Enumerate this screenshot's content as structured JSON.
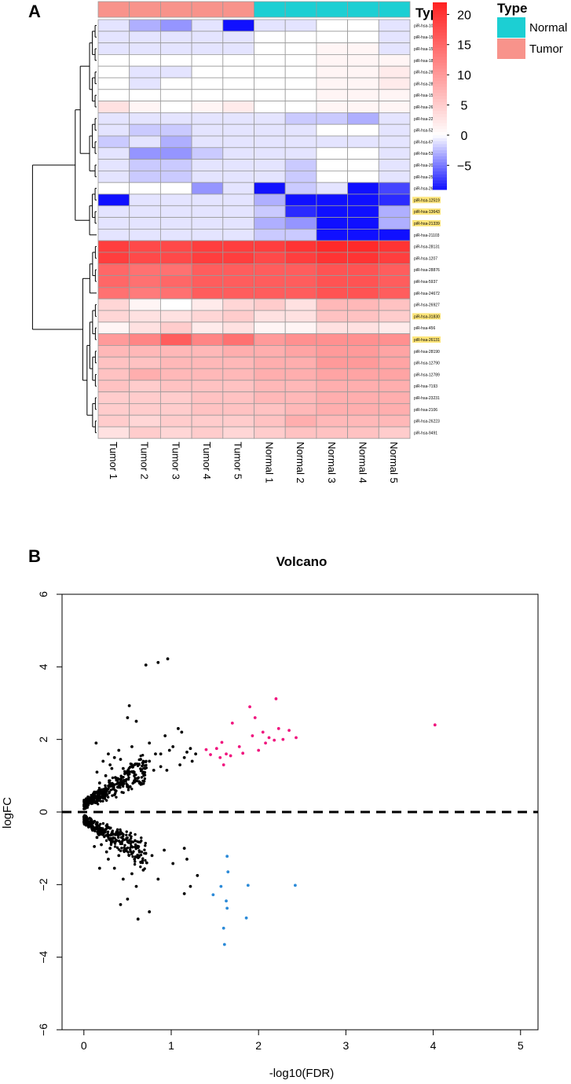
{
  "panel_labels": [
    "A",
    "B"
  ],
  "chart_data": [
    {
      "type": "heatmap",
      "panel": "A",
      "columns": [
        "Tumor 1",
        "Tumor 2",
        "Tumor 3",
        "Tumor 4",
        "Tumor 5",
        "Normal 1",
        "Normal 2",
        "Normal 3",
        "Normal 4",
        "Normal 5"
      ],
      "column_type": [
        "Tumor",
        "Tumor",
        "Tumor",
        "Tumor",
        "Tumor",
        "Normal",
        "Normal",
        "Normal",
        "Normal",
        "Normal"
      ],
      "rows": [
        "piR-hsa-10327",
        "piR-hsa-15404",
        "piR-hsa-15405",
        "piR-hsa-18657",
        "piR-hsa-28183",
        "piR-hsa-28185",
        "piR-hsa-1583",
        "piR-hsa-26395",
        "piR-hsa-22842",
        "piR-hsa-5287",
        "piR-hsa-6746",
        "piR-hsa-5302",
        "piR-hsa-20313",
        "piR-hsa-25861",
        "piR-hsa-26427",
        "piR-hsa-12519",
        "piR-hsa-13643",
        "piR-hsa-21339",
        "piR-hsa-21103",
        "piR-hsa-28131",
        "piR-hsa-1207",
        "piR-hsa-28876",
        "piR-hsa-5937",
        "piR-hsa-24672",
        "piR-hsa-26927",
        "piR-hsa-31830",
        "piR-hsa-456",
        "piR-hsa-26131",
        "piR-hsa-28190",
        "piR-hsa-12790",
        "piR-hsa-12789",
        "piR-hsa-7193",
        "piR-hsa-23231",
        "piR-hsa-2106",
        "piR-hsa-26223",
        "piR-hsa-9491"
      ],
      "highlighted_rows": [
        "piR-hsa-12519",
        "piR-hsa-13643",
        "piR-hsa-21339",
        "piR-hsa-31830",
        "piR-hsa-26131"
      ],
      "values": [
        [
          -1,
          -3,
          -4,
          -1,
          -9,
          -1,
          -1,
          0,
          0,
          -1
        ],
        [
          -1,
          -1,
          -1,
          -1,
          -1,
          0,
          0,
          0,
          0,
          -1
        ],
        [
          -1,
          -1,
          -1,
          -1,
          -1,
          0,
          0,
          1,
          1,
          -1
        ],
        [
          0,
          0,
          0,
          0,
          0,
          0,
          0,
          1,
          1,
          1
        ],
        [
          0,
          -1,
          -1,
          0,
          0,
          0,
          0,
          1,
          1,
          2
        ],
        [
          0,
          -1,
          0,
          0,
          0,
          0,
          0,
          1,
          1,
          2
        ],
        [
          0,
          0,
          0,
          0,
          0,
          0,
          0,
          1,
          1,
          1
        ],
        [
          3,
          1,
          0,
          1,
          2,
          0,
          0,
          1,
          1,
          1
        ],
        [
          -1,
          -1,
          -1,
          -1,
          -1,
          -1,
          -2,
          -2,
          -3,
          -1
        ],
        [
          -1,
          -2,
          -2,
          -1,
          -1,
          -1,
          -1,
          0,
          0,
          -1
        ],
        [
          -2,
          -1,
          -3,
          -1,
          -1,
          -1,
          -1,
          -1,
          -1,
          -1
        ],
        [
          -1,
          -4,
          -4,
          -2,
          -1,
          -1,
          -1,
          0,
          0,
          -1
        ],
        [
          -1,
          -2,
          -2,
          -1,
          -1,
          -1,
          -2,
          0,
          0,
          -1
        ],
        [
          -1,
          -2,
          -2,
          -1,
          -1,
          -1,
          -2,
          0,
          0,
          -1
        ],
        [
          0,
          0,
          0,
          -4,
          -1,
          -9,
          -2,
          -1,
          -9,
          -7
        ],
        [
          -9,
          -1,
          -1,
          -1,
          -1,
          -3,
          -9,
          -9,
          -9,
          -8
        ],
        [
          -1,
          -1,
          -1,
          -1,
          -1,
          -2,
          -8,
          -9,
          -9,
          -3
        ],
        [
          -1,
          -1,
          -1,
          -1,
          -1,
          -3,
          -4,
          -9,
          -9,
          -3
        ],
        [
          -1,
          -1,
          -1,
          -1,
          -1,
          -2,
          -2,
          -9,
          -9,
          -9
        ],
        [
          19,
          18,
          18,
          19,
          19,
          19,
          20,
          21,
          21,
          20
        ],
        [
          19,
          18,
          18,
          19,
          19,
          18,
          19,
          20,
          20,
          19
        ],
        [
          15,
          14,
          14,
          16,
          16,
          16,
          16,
          17,
          17,
          16
        ],
        [
          15,
          14,
          15,
          16,
          16,
          16,
          16,
          17,
          17,
          16
        ],
        [
          14,
          13,
          14,
          16,
          16,
          16,
          16,
          17,
          17,
          16
        ],
        [
          4,
          1,
          0,
          2,
          4,
          5,
          3,
          7,
          7,
          6
        ],
        [
          4,
          3,
          3,
          4,
          5,
          3,
          3,
          6,
          6,
          5
        ],
        [
          1,
          3,
          5,
          2,
          3,
          1,
          1,
          3,
          3,
          2
        ],
        [
          10,
          12,
          16,
          12,
          14,
          10,
          11,
          11,
          11,
          11
        ],
        [
          7,
          7,
          7,
          7,
          8,
          8,
          9,
          10,
          10,
          9
        ],
        [
          6,
          6,
          7,
          7,
          7,
          8,
          8,
          10,
          10,
          9
        ],
        [
          6,
          8,
          7,
          7,
          7,
          8,
          8,
          9,
          9,
          9
        ],
        [
          6,
          5,
          6,
          6,
          6,
          7,
          7,
          8,
          8,
          8
        ],
        [
          5,
          5,
          5,
          6,
          6,
          7,
          7,
          8,
          8,
          8
        ],
        [
          5,
          5,
          5,
          6,
          6,
          6,
          7,
          8,
          8,
          8
        ],
        [
          5,
          4,
          5,
          5,
          5,
          6,
          8,
          7,
          7,
          7
        ],
        [
          3,
          5,
          4,
          5,
          4,
          5,
          6,
          6,
          6,
          5
        ]
      ],
      "scale": {
        "min": -9,
        "max": 22,
        "ticks": [
          20,
          15,
          10,
          5,
          0,
          -5
        ],
        "low_color": "#1010ff",
        "mid_color": "#ffffff",
        "high_color": "#ff2020"
      },
      "legend": {
        "title": "Type",
        "entries": [
          {
            "label": "Normal",
            "color": "#1ccfd3"
          },
          {
            "label": "Tumor",
            "color": "#f8938b"
          }
        ]
      },
      "colorbar_title": "Type"
    },
    {
      "type": "scatter",
      "panel": "B",
      "title": "Volcano",
      "xlabel": "-log10(FDR)",
      "ylabel": "logFC",
      "xlim": [
        -0.25,
        5.2
      ],
      "ylim": [
        -6,
        6
      ],
      "xticks": [
        0,
        1,
        2,
        3,
        4,
        5
      ],
      "yticks": [
        -6,
        -4,
        -2,
        0,
        2,
        4,
        6
      ],
      "hline": 0,
      "colors": {
        "up": "#f0147e",
        "down": "#2b8ad8",
        "ns": "#000000"
      },
      "series": [
        {
          "name": "up",
          "points": [
            [
              1.4,
              1.72
            ],
            [
              1.45,
              1.58
            ],
            [
              1.52,
              1.75
            ],
            [
              1.56,
              1.5
            ],
            [
              1.58,
              1.92
            ],
            [
              1.6,
              1.3
            ],
            [
              1.63,
              1.6
            ],
            [
              1.68,
              1.55
            ],
            [
              1.7,
              2.45
            ],
            [
              1.78,
              1.8
            ],
            [
              1.82,
              1.62
            ],
            [
              1.9,
              2.9
            ],
            [
              1.93,
              2.1
            ],
            [
              1.96,
              2.6
            ],
            [
              2.0,
              1.7
            ],
            [
              2.05,
              2.2
            ],
            [
              2.08,
              1.9
            ],
            [
              2.12,
              2.05
            ],
            [
              2.18,
              1.98
            ],
            [
              2.2,
              3.12
            ],
            [
              2.23,
              2.3
            ],
            [
              2.28,
              2.0
            ],
            [
              2.35,
              2.25
            ],
            [
              2.43,
              2.05
            ],
            [
              4.02,
              2.4
            ]
          ]
        },
        {
          "name": "down",
          "points": [
            [
              1.48,
              -2.28
            ],
            [
              1.57,
              -2.05
            ],
            [
              1.6,
              -3.2
            ],
            [
              1.61,
              -3.65
            ],
            [
              1.63,
              -2.45
            ],
            [
              1.64,
              -2.65
            ],
            [
              1.64,
              -1.22
            ],
            [
              1.65,
              -1.65
            ],
            [
              1.86,
              -2.92
            ],
            [
              1.88,
              -2.02
            ],
            [
              2.42,
              -2.02
            ]
          ]
        },
        {
          "name": "ns",
          "points": [
            [
              0.71,
              4.05
            ],
            [
              0.85,
              4.12
            ],
            [
              0.96,
              4.22
            ],
            [
              0.52,
              2.93
            ],
            [
              0.5,
              2.6
            ],
            [
              0.6,
              2.5
            ],
            [
              1.08,
              2.3
            ],
            [
              1.12,
              2.2
            ],
            [
              0.75,
              1.9
            ],
            [
              0.82,
              1.6
            ],
            [
              0.93,
              2.1
            ],
            [
              0.98,
              1.7
            ],
            [
              1.02,
              1.8
            ],
            [
              1.15,
              1.5
            ],
            [
              1.18,
              1.65
            ],
            [
              1.22,
              1.75
            ],
            [
              1.28,
              1.6
            ],
            [
              1.24,
              1.4
            ],
            [
              1.1,
              1.3
            ],
            [
              0.88,
              1.25
            ],
            [
              0.8,
              1.15
            ],
            [
              0.65,
              1.45
            ],
            [
              0.7,
              1.2
            ],
            [
              0.4,
              1.7
            ],
            [
              0.35,
              1.5
            ],
            [
              0.55,
              1.8
            ],
            [
              0.62,
              -0.98
            ],
            [
              0.78,
              -1.2
            ],
            [
              0.92,
              -1.05
            ],
            [
              1.02,
              -1.42
            ],
            [
              1.15,
              -1.0
            ],
            [
              1.18,
              -1.3
            ],
            [
              1.22,
              -2.05
            ],
            [
              1.3,
              -1.75
            ],
            [
              1.15,
              -2.25
            ],
            [
              0.75,
              -2.75
            ],
            [
              0.62,
              -2.95
            ],
            [
              0.42,
              -2.55
            ],
            [
              0.5,
              -2.4
            ],
            [
              0.6,
              -2.05
            ],
            [
              0.55,
              -1.7
            ],
            [
              0.35,
              -1.55
            ],
            [
              0.28,
              -1.3
            ],
            [
              0.45,
              -1.85
            ],
            [
              0.68,
              -1.6
            ],
            [
              0.85,
              -1.85
            ],
            [
              0.72,
              -1.4
            ],
            [
              0.3,
              -1.0
            ],
            [
              0.2,
              -0.9
            ],
            [
              0.15,
              -0.7
            ],
            [
              0.1,
              -0.5
            ],
            [
              0.05,
              -0.3
            ],
            [
              0.08,
              0.3
            ],
            [
              0.12,
              0.55
            ],
            [
              0.18,
              0.8
            ],
            [
              0.25,
              1.0
            ],
            [
              0.32,
              1.2
            ],
            [
              0.22,
              1.4
            ],
            [
              0.15,
              1.1
            ],
            [
              0.4,
              -1.2
            ],
            [
              0.48,
              -1.05
            ],
            [
              0.58,
              -1.3
            ],
            [
              0.66,
              -1.1
            ],
            [
              0.26,
              -1.1
            ],
            [
              0.18,
              -1.55
            ],
            [
              0.12,
              -0.95
            ],
            [
              0.45,
              1.2
            ],
            [
              0.52,
              1.05
            ],
            [
              0.58,
              1.3
            ],
            [
              0.68,
              1.1
            ],
            [
              0.75,
              1.4
            ],
            [
              0.88,
              1.6
            ],
            [
              0.95,
              1.15
            ],
            [
              0.28,
              1.6
            ],
            [
              0.14,
              1.9
            ],
            [
              0.3,
              1.3
            ],
            [
              0.36,
              0.95
            ],
            [
              0.42,
              1.45
            ]
          ]
        }
      ]
    }
  ]
}
